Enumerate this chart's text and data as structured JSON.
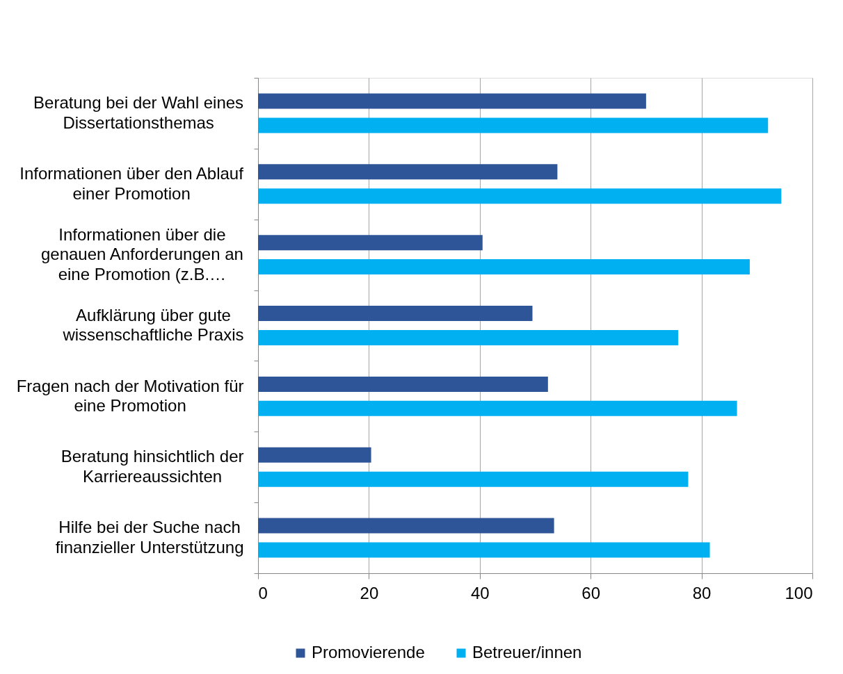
{
  "chart_data": {
    "type": "bar",
    "orientation": "horizontal",
    "categories": [
      "Beratung bei der Wahl eines Dissertationsthemas",
      "Informationen über den Ablauf einer Promotion",
      "Informationen über die genauen Anforderungen an eine Promotion (z.B.…",
      "Aufklärung über gute wissenschaftliche Praxis",
      "Fragen nach der Motivation für eine Promotion",
      "Beratung hinsichtlich der Karriereaussichten",
      "Hilfe bei der Suche nach finanzieller Unterstützung"
    ],
    "series": [
      {
        "name": "Promovierende",
        "color": "#2e5597",
        "values": [
          70,
          54,
          40.5,
          49.5,
          52.3,
          20.4,
          53.4
        ]
      },
      {
        "name": "Betreuer/innen",
        "color": "#00b0f0",
        "values": [
          92,
          94.4,
          88.7,
          75.8,
          86.4,
          77.6,
          81.5
        ]
      }
    ],
    "xlim": [
      0,
      100
    ],
    "xticks": [
      0,
      20,
      40,
      60,
      80,
      100
    ],
    "grid": "x",
    "legend": "bottom"
  }
}
